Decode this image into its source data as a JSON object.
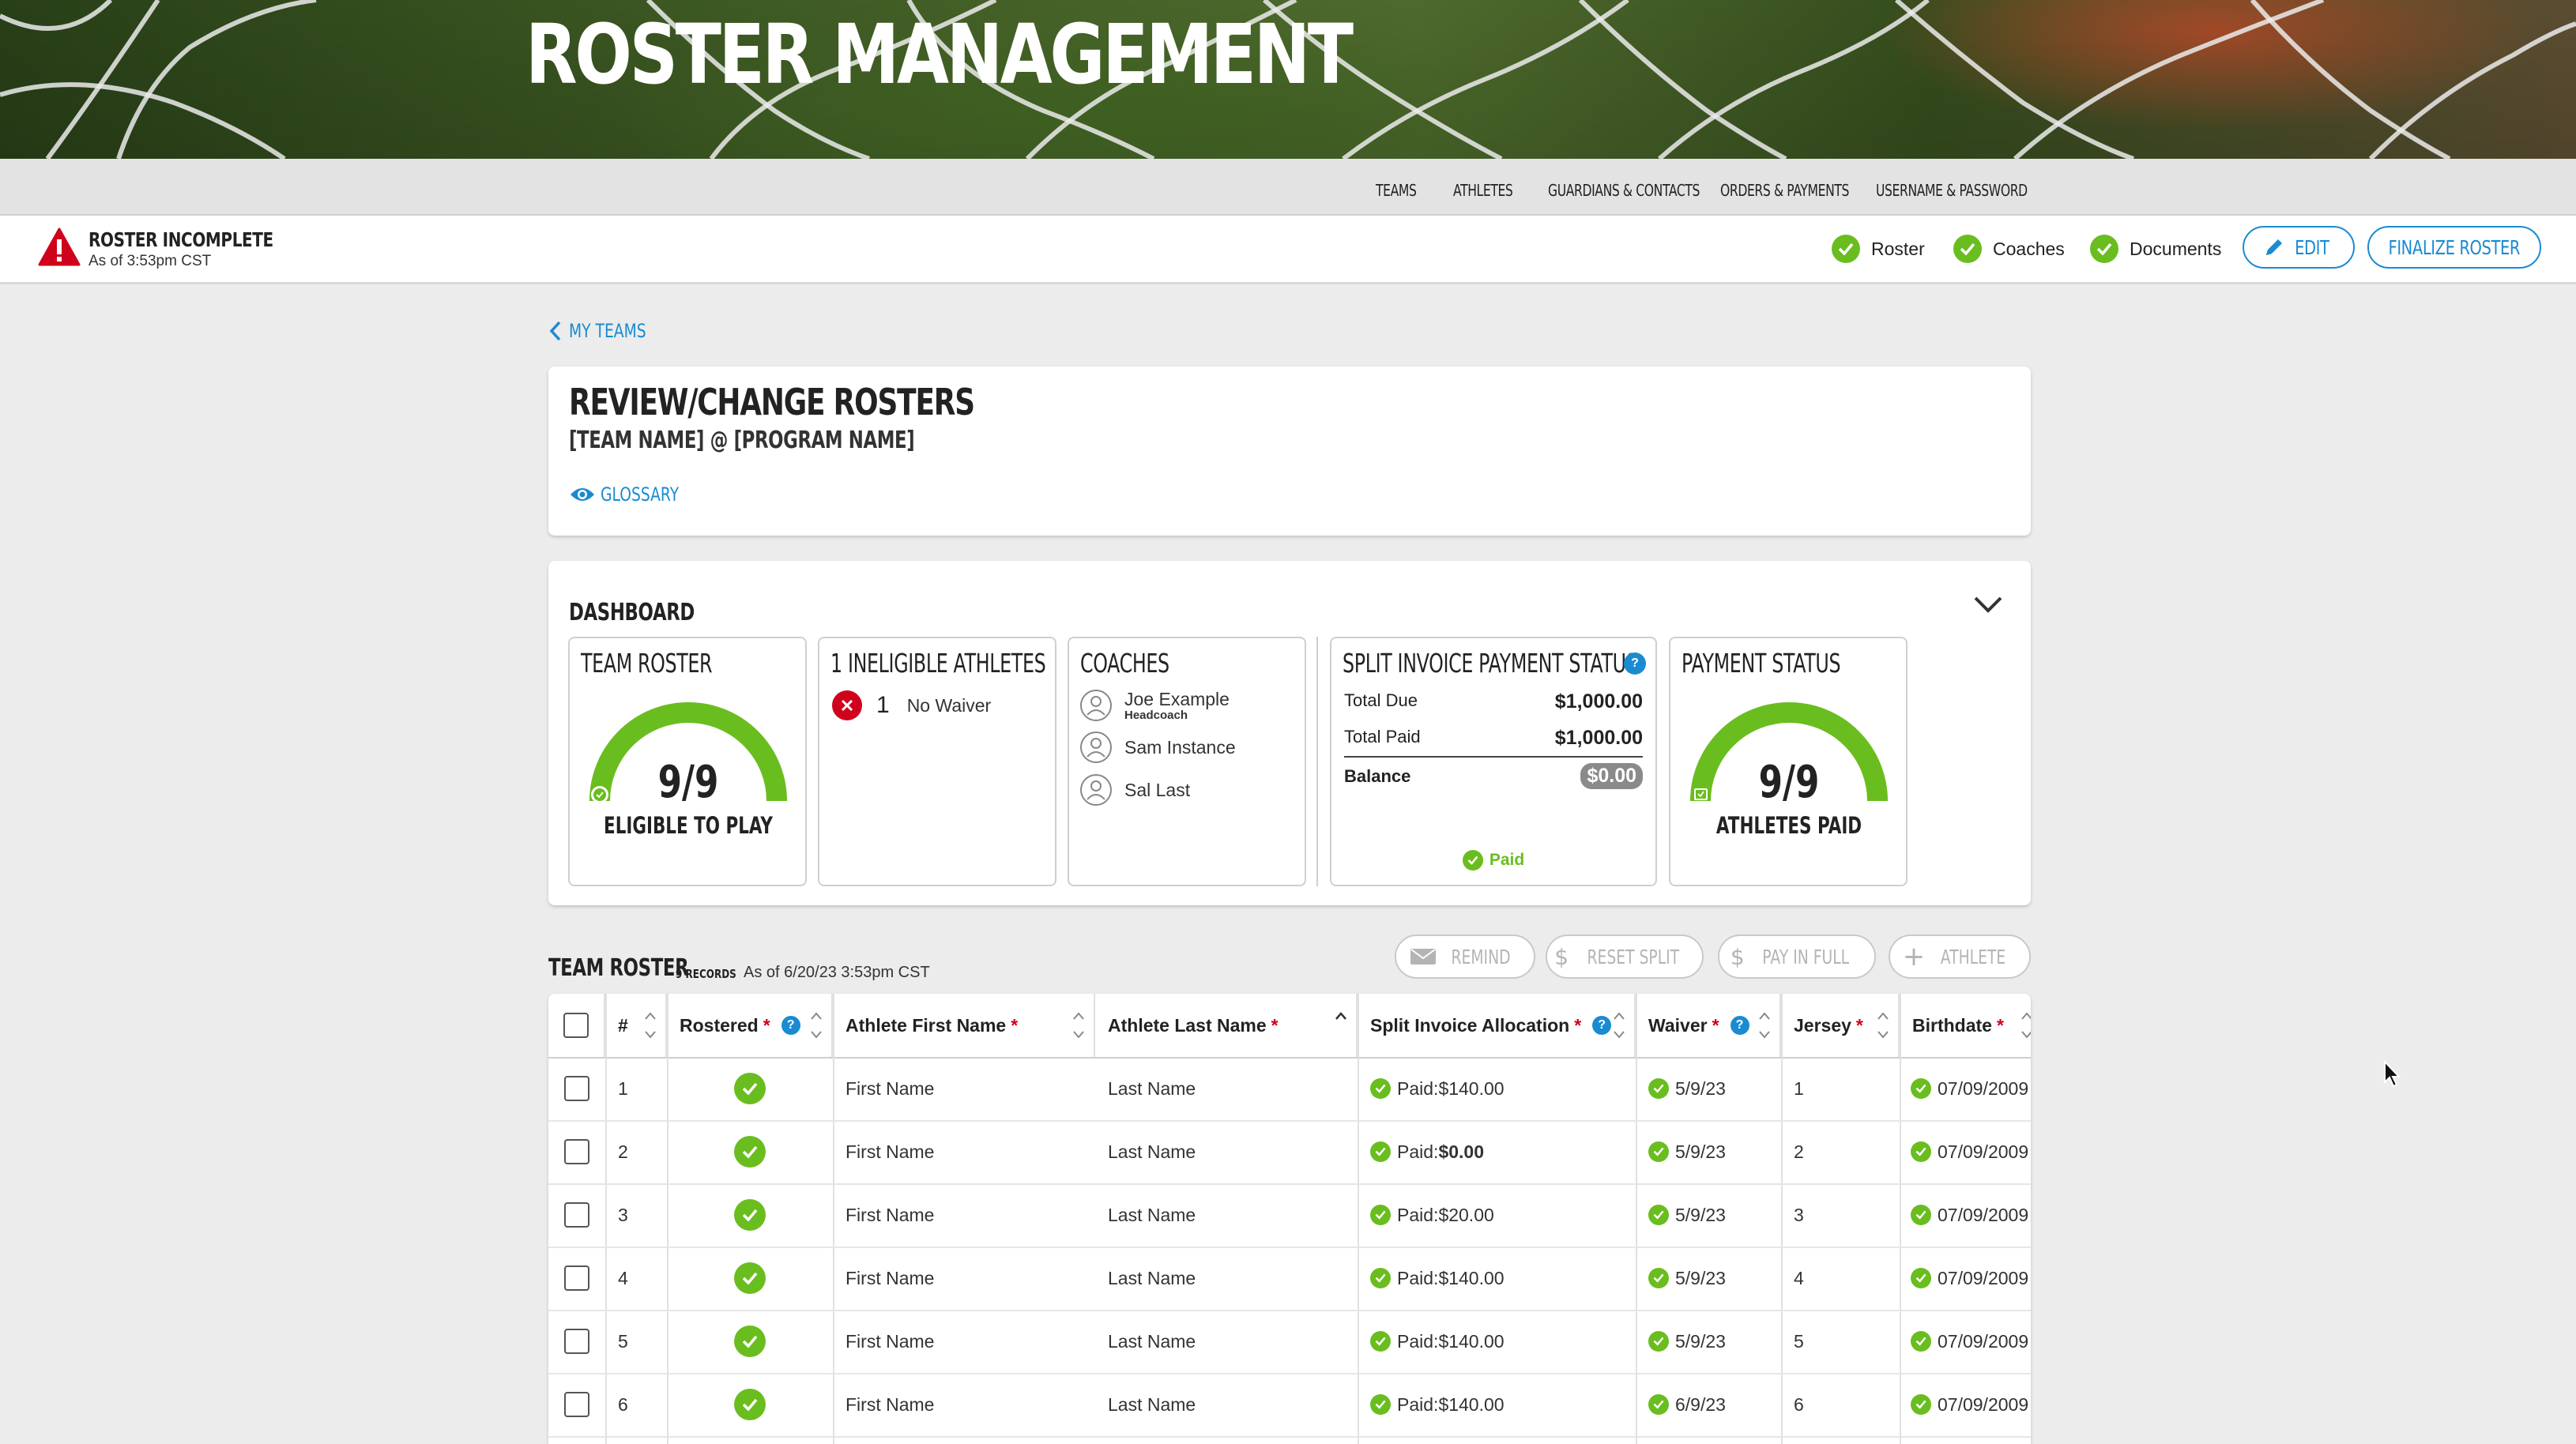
{
  "header": {
    "title": "ROSTER MANAGEMENT"
  },
  "nav": {
    "items": [
      "TEAMS",
      "ATHLETES",
      "GUARDIANS & CONTACTS",
      "ORDERS & PAYMENTS",
      "USERNAME & PASSWORD"
    ]
  },
  "status": {
    "title": "ROSTER INCOMPLETE",
    "subtitle": "As of 3:53pm CST",
    "checks": [
      "Roster",
      "Coaches",
      "Documents"
    ],
    "edit_label": "EDIT",
    "finalize_label": "FINALIZE ROSTER"
  },
  "back_link": "MY TEAMS",
  "review": {
    "title": "REVIEW/CHANGE ROSTERS",
    "subtitle": "[TEAM NAME] @ [PROGRAM NAME]",
    "glossary": "GLOSSARY"
  },
  "dashboard": {
    "title": "DASHBOARD",
    "team_roster": {
      "title": "TEAM ROSTER",
      "value": "9/9",
      "label": "ELIGIBLE TO PLAY",
      "fraction": 1.0
    },
    "ineligible": {
      "title": "1 INELIGIBLE ATHLETES",
      "count": "1",
      "reason": "No Waiver"
    },
    "coaches": {
      "title": "COACHES",
      "list": [
        {
          "name": "Joe Example",
          "role": "Headcoach"
        },
        {
          "name": "Sam Instance",
          "role": ""
        },
        {
          "name": "Sal Last",
          "role": ""
        }
      ]
    },
    "split_invoice": {
      "title": "SPLIT INVOICE PAYMENT STATUS",
      "total_due_label": "Total Due",
      "total_due": "$1,000.00",
      "total_paid_label": "Total Paid",
      "total_paid": "$1,000.00",
      "balance_label": "Balance",
      "balance": "$0.00",
      "status": "Paid"
    },
    "payment_status": {
      "title": "PAYMENT STATUS",
      "value": "9/9",
      "label": "ATHLETES PAID",
      "fraction": 1.0
    }
  },
  "roster_table": {
    "title": "TEAM ROSTER",
    "count": "9 RECORDS",
    "as_of": "As of 6/20/23 3:53pm CST",
    "actions": {
      "remind": "REMIND",
      "reset_split": "RESET SPLIT",
      "pay_in_full": "PAY IN FULL",
      "athlete": "ATHLETE"
    },
    "headers": {
      "num": "#",
      "rostered": "Rostered",
      "first": "Athlete First Name",
      "last": "Athlete Last Name",
      "split": "Split Invoice Allocation",
      "waiver": "Waiver",
      "jersey": "Jersey",
      "birthdate": "Birthdate"
    },
    "rows": [
      {
        "num": "1",
        "first": "First Name",
        "last": "Last Name",
        "split_prefix": "Paid: ",
        "split_amount": "$140.00",
        "bold": false,
        "waiver": "5/9/23",
        "jersey": "1",
        "birthdate": "07/09/2009"
      },
      {
        "num": "2",
        "first": "First Name",
        "last": "Last Name",
        "split_prefix": "Paid: ",
        "split_amount": "$0.00",
        "bold": true,
        "waiver": "5/9/23",
        "jersey": "2",
        "birthdate": "07/09/2009"
      },
      {
        "num": "3",
        "first": "First Name",
        "last": "Last Name",
        "split_prefix": "Paid: ",
        "split_amount": "$20.00",
        "bold": false,
        "waiver": "5/9/23",
        "jersey": "3",
        "birthdate": "07/09/2009"
      },
      {
        "num": "4",
        "first": "First Name",
        "last": "Last Name",
        "split_prefix": "Paid: ",
        "split_amount": "$140.00",
        "bold": false,
        "waiver": "5/9/23",
        "jersey": "4",
        "birthdate": "07/09/2009"
      },
      {
        "num": "5",
        "first": "First Name",
        "last": "Last Name",
        "split_prefix": "Paid: ",
        "split_amount": "$140.00",
        "bold": false,
        "waiver": "5/9/23",
        "jersey": "5",
        "birthdate": "07/09/2009"
      },
      {
        "num": "6",
        "first": "First Name",
        "last": "Last Name",
        "split_prefix": "Paid: ",
        "split_amount": "$140.00",
        "bold": false,
        "waiver": "6/9/23",
        "jersey": "6",
        "birthdate": "07/09/2009"
      }
    ]
  },
  "colors": {
    "accent": "#1a8bd1",
    "success": "#6abd1e",
    "danger": "#d0021b"
  }
}
